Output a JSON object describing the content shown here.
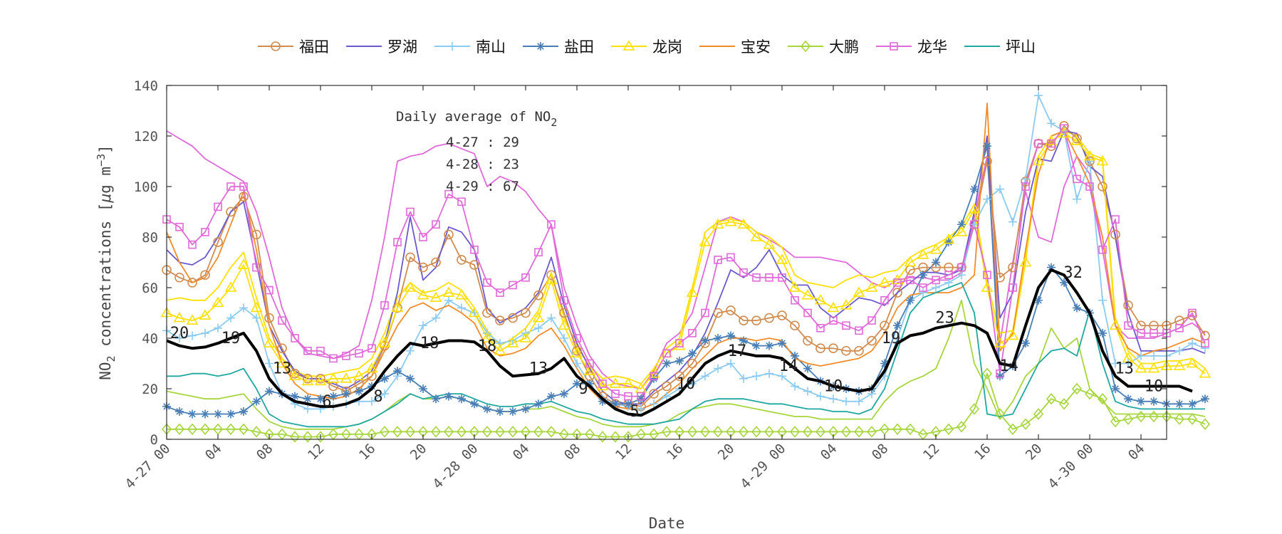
{
  "chart_data": {
    "type": "line",
    "title": "",
    "xlabel": "Date",
    "ylabel_main": "NO",
    "ylabel_sub": "2",
    "ylabel_rest": " concentrations [",
    "ylabel_mu": "μ",
    "ylabel_units": "g m",
    "ylabel_exp": "−3",
    "ylabel_close": "]",
    "ylim": [
      0,
      140
    ],
    "yticks": [
      0,
      20,
      40,
      60,
      80,
      100,
      120,
      140
    ],
    "xlim": [
      0,
      78
    ],
    "xticks": [
      {
        "pos": 0,
        "label": "4-27 00"
      },
      {
        "pos": 4,
        "label": "04"
      },
      {
        "pos": 8,
        "label": "08"
      },
      {
        "pos": 12,
        "label": "12"
      },
      {
        "pos": 16,
        "label": "16"
      },
      {
        "pos": 20,
        "label": "20"
      },
      {
        "pos": 24,
        "label": "4-28 00"
      },
      {
        "pos": 28,
        "label": "04"
      },
      {
        "pos": 32,
        "label": "08"
      },
      {
        "pos": 36,
        "label": "12"
      },
      {
        "pos": 40,
        "label": "16"
      },
      {
        "pos": 44,
        "label": "20"
      },
      {
        "pos": 48,
        "label": "4-29 00"
      },
      {
        "pos": 52,
        "label": "04"
      },
      {
        "pos": 56,
        "label": "08"
      },
      {
        "pos": 60,
        "label": "12"
      },
      {
        "pos": 64,
        "label": "16"
      },
      {
        "pos": 68,
        "label": "20"
      },
      {
        "pos": 72,
        "label": "4-30 00"
      },
      {
        "pos": 76,
        "label": "04"
      }
    ],
    "legend_position": "top",
    "annotation": {
      "title_main": "Daily average of NO",
      "title_sub": "2",
      "lines": [
        "4-27 : 29",
        "4-28 : 23",
        "4-29 : 67"
      ]
    },
    "avg_labels": [
      {
        "x": 1,
        "y": 40,
        "text": "20"
      },
      {
        "x": 5,
        "y": 38,
        "text": "19"
      },
      {
        "x": 9,
        "y": 26,
        "text": "13"
      },
      {
        "x": 12.5,
        "y": 13,
        "text": "6"
      },
      {
        "x": 16.5,
        "y": 15,
        "text": "8"
      },
      {
        "x": 20.5,
        "y": 36,
        "text": "18"
      },
      {
        "x": 25,
        "y": 35,
        "text": "18"
      },
      {
        "x": 29,
        "y": 26,
        "text": "13"
      },
      {
        "x": 32.5,
        "y": 18,
        "text": "9"
      },
      {
        "x": 36.5,
        "y": 9,
        "text": "5"
      },
      {
        "x": 40.5,
        "y": 20,
        "text": "10"
      },
      {
        "x": 44.5,
        "y": 33,
        "text": "17"
      },
      {
        "x": 48.5,
        "y": 27,
        "text": "14"
      },
      {
        "x": 52,
        "y": 19,
        "text": "10"
      },
      {
        "x": 56.5,
        "y": 38,
        "text": "19"
      },
      {
        "x": 60.7,
        "y": 46,
        "text": "23"
      },
      {
        "x": 65.7,
        "y": 27,
        "text": "14"
      },
      {
        "x": 70.7,
        "y": 64,
        "text": "32"
      },
      {
        "x": 74.7,
        "y": 26,
        "text": "13"
      },
      {
        "x": 77,
        "y": 19,
        "text": "10"
      }
    ],
    "average_series": {
      "name": "",
      "color": "#000000",
      "values": [
        39,
        37,
        36,
        36.5,
        38,
        40,
        42,
        35,
        24,
        18,
        15,
        14,
        13,
        13,
        14,
        16,
        20,
        27,
        33,
        38,
        37,
        38,
        39,
        39,
        38.5,
        35,
        29,
        25,
        25.5,
        26,
        28,
        32,
        25,
        21,
        16,
        12,
        10,
        9.5,
        12,
        15,
        18,
        24,
        30,
        33,
        35,
        34,
        33,
        33,
        32,
        28,
        24,
        23,
        21,
        20,
        19,
        20,
        27,
        38,
        41,
        42,
        44,
        45,
        46,
        45,
        42,
        30,
        29,
        45,
        60,
        67,
        65,
        58,
        50,
        35,
        25,
        21,
        21,
        21,
        21,
        21,
        19
      ]
    },
    "series": [
      {
        "name": "福田",
        "color": "#d08c50",
        "marker": "circle",
        "values": [
          67,
          64,
          62,
          65,
          78,
          90,
          96,
          81,
          48,
          36,
          26,
          24,
          24,
          21,
          19,
          22,
          25,
          37,
          52,
          72,
          68,
          70,
          81,
          71,
          69,
          50,
          47,
          48,
          50,
          57,
          65,
          50,
          35,
          25,
          17,
          14,
          14,
          13,
          18,
          21,
          25,
          30,
          38,
          50,
          51,
          47,
          47,
          48,
          49,
          45,
          39,
          36,
          36,
          35,
          35,
          39,
          45,
          58,
          67,
          68,
          68,
          68,
          68,
          85,
          110,
          64,
          68,
          102,
          117,
          116,
          124,
          119,
          110,
          100,
          81,
          53,
          45,
          45,
          45,
          47,
          49,
          41
        ]
      },
      {
        "name": "罗湖",
        "color": "#6a5acd",
        "marker": "none",
        "values": [
          75,
          70,
          69,
          72,
          80,
          90,
          94,
          70,
          45,
          35,
          27,
          24,
          24,
          22,
          20,
          23,
          27,
          38,
          58,
          88,
          63,
          68,
          84,
          82,
          75,
          52,
          46,
          49,
          52,
          58,
          72,
          53,
          38,
          28,
          19,
          15,
          14,
          14,
          19,
          23,
          27,
          33,
          42,
          54,
          67,
          64,
          68,
          75,
          65,
          61,
          61,
          52,
          48,
          52,
          56,
          55,
          53,
          58,
          62,
          66,
          66,
          65,
          67,
          90,
          120,
          48,
          58,
          90,
          111,
          110,
          122,
          121,
          108,
          104,
          80,
          50,
          35,
          35,
          35,
          35,
          36,
          34
        ]
      },
      {
        "name": "南山",
        "color": "#8ccbf0",
        "marker": "plus",
        "values": [
          43,
          40,
          41,
          42,
          44,
          48,
          52,
          48,
          30,
          18,
          14,
          12,
          12,
          13,
          14,
          15,
          15,
          18,
          25,
          35,
          45,
          48,
          55,
          52,
          50,
          42,
          38,
          39,
          42,
          44,
          48,
          40,
          30,
          22,
          16,
          14,
          13,
          12,
          14,
          17,
          20,
          22,
          25,
          28,
          30,
          24,
          25,
          26,
          25,
          21,
          19,
          17,
          16,
          15,
          15,
          18,
          25,
          40,
          55,
          58,
          60,
          62,
          65,
          85,
          95,
          99,
          86,
          103,
          136,
          125,
          122,
          95,
          110,
          55,
          30,
          30,
          33,
          33,
          33,
          35,
          38,
          36
        ]
      },
      {
        "name": "盐田",
        "color": "#4a7fb5",
        "marker": "asterisk",
        "values": [
          13,
          11,
          10,
          10,
          10,
          10,
          11,
          15,
          19,
          18,
          17,
          16,
          16,
          17,
          18,
          19,
          21,
          24,
          27,
          24,
          20,
          16,
          17,
          16,
          14,
          12,
          11,
          11,
          12,
          14,
          17,
          18,
          22,
          22,
          15,
          14,
          14,
          16,
          24,
          30,
          31,
          34,
          39,
          40,
          41,
          39,
          37,
          37,
          38,
          33,
          28,
          23,
          21,
          20,
          19,
          20,
          30,
          45,
          55,
          65,
          70,
          78,
          85,
          99,
          116,
          25,
          29,
          38,
          55,
          68,
          62,
          52,
          50,
          42,
          20,
          16,
          15,
          15,
          14,
          14,
          14,
          16
        ]
      },
      {
        "name": "龙岗",
        "color": "#ffe000",
        "marker": "triangle",
        "values": [
          50,
          48,
          47,
          49,
          54,
          60,
          69,
          52,
          38,
          30,
          25,
          23,
          23,
          24,
          24,
          25,
          28,
          38,
          52,
          60,
          57,
          56,
          58,
          57,
          50,
          40,
          35,
          38,
          40,
          48,
          63,
          45,
          34,
          27,
          21,
          22,
          22,
          20,
          26,
          34,
          37,
          58,
          78,
          85,
          86,
          85,
          80,
          77,
          71,
          60,
          57,
          55,
          52,
          53,
          58,
          60,
          62,
          63,
          70,
          73,
          75,
          79,
          82,
          91,
          60,
          38,
          41,
          70,
          110,
          118,
          121,
          118,
          112,
          110,
          45,
          32,
          28,
          28,
          29,
          29,
          30,
          26
        ]
      },
      {
        "name": "宝安",
        "color": "#f28c28",
        "marker": "none",
        "values": [
          82,
          70,
          62,
          64,
          72,
          85,
          98,
          75,
          45,
          30,
          22,
          18,
          17,
          16,
          17,
          20,
          25,
          35,
          45,
          52,
          54,
          51,
          53,
          50,
          46,
          36,
          33,
          34,
          36,
          41,
          44,
          37,
          28,
          20,
          15,
          13,
          12,
          12,
          14,
          18,
          22,
          28,
          33,
          38,
          40,
          40,
          39,
          40,
          39,
          32,
          30,
          29,
          30,
          31,
          32,
          35,
          42,
          52,
          57,
          58,
          58,
          58,
          60,
          65,
          133,
          35,
          42,
          75,
          105,
          120,
          122,
          112,
          101,
          80,
          45,
          36,
          33,
          35,
          36,
          38,
          40,
          38
        ]
      },
      {
        "name": "大鹏",
        "color": "#a6d63c",
        "marker": "diamond",
        "values": [
          4,
          4,
          4,
          4,
          4,
          4,
          4,
          3,
          2,
          2,
          1,
          1,
          1,
          2,
          2,
          2,
          2,
          3,
          3,
          3,
          3,
          3,
          3,
          3,
          3,
          3,
          3,
          3,
          3,
          3,
          3,
          2,
          2,
          2,
          1,
          1,
          1,
          2,
          2,
          3,
          3,
          3,
          3,
          3,
          3,
          3,
          3,
          3,
          3,
          3,
          3,
          3,
          3,
          3,
          3,
          3,
          4,
          4,
          4,
          2,
          3,
          4,
          5,
          12,
          26,
          10,
          4,
          6,
          10,
          16,
          14,
          20,
          18,
          16,
          7,
          8,
          9,
          9,
          9,
          8,
          8,
          6
        ]
      },
      {
        "name": "龙华",
        "color": "#e06ad8",
        "marker": "square",
        "values": [
          87,
          84,
          77,
          82,
          92,
          100,
          100,
          68,
          59,
          47,
          40,
          35,
          35,
          32,
          33,
          34,
          36,
          53,
          78,
          90,
          80,
          85,
          97,
          94,
          75,
          62,
          58,
          61,
          64,
          74,
          85,
          55,
          40,
          30,
          22,
          18,
          17,
          17,
          25,
          34,
          38,
          42,
          50,
          71,
          72,
          66,
          64,
          64,
          64,
          55,
          50,
          44,
          47,
          45,
          43,
          47,
          55,
          62,
          63,
          60,
          63,
          65,
          68,
          85,
          65,
          26,
          60,
          100,
          117,
          117,
          123,
          103,
          100,
          75,
          87,
          45,
          42,
          42,
          42,
          44,
          50,
          38
        ]
      },
      {
        "name": "坪山",
        "color": "#1fa8a0",
        "marker": "none",
        "values": [
          25,
          25,
          26,
          26,
          25,
          26,
          28,
          20,
          10,
          7,
          6,
          5,
          5,
          5,
          5,
          6,
          8,
          11,
          14,
          18,
          16,
          17,
          18,
          18,
          16,
          14,
          13,
          13,
          14,
          14,
          15,
          13,
          11,
          10,
          8,
          7,
          6,
          6,
          6,
          7,
          8,
          12,
          15,
          16,
          16,
          16,
          15,
          14,
          14,
          13,
          12,
          12,
          11,
          11,
          10,
          12,
          20,
          35,
          50,
          56,
          58,
          60,
          62,
          50,
          10,
          9,
          10,
          20,
          30,
          35,
          36,
          33,
          51,
          30,
          15,
          13,
          12,
          12,
          12,
          12,
          12,
          12
        ]
      }
    ],
    "extra_lines": [
      {
        "color": "#e06ad8",
        "values": [
          122,
          119,
          116,
          111,
          108,
          105,
          102,
          90,
          72,
          52,
          40,
          34,
          33,
          32,
          34,
          37,
          55,
          80,
          110,
          112,
          113,
          116,
          117,
          115,
          113,
          100,
          104,
          102,
          98,
          91,
          85,
          60,
          45,
          33,
          26,
          22,
          21,
          20,
          27,
          38,
          42,
          50,
          68,
          86,
          88,
          86,
          82,
          79,
          76,
          72,
          72,
          72,
          71,
          70,
          66,
          62,
          60,
          63,
          64,
          64,
          63,
          63,
          66,
          88,
          112,
          38,
          70,
          98,
          80,
          78,
          100,
          112,
          105,
          75,
          45,
          40,
          40,
          40,
          42,
          44,
          46,
          42
        ]
      },
      {
        "color": "#ffe000",
        "values": [
          55,
          56,
          55,
          55,
          60,
          68,
          74,
          56,
          40,
          32,
          27,
          25,
          25,
          26,
          27,
          28,
          32,
          42,
          56,
          62,
          58,
          59,
          62,
          59,
          52,
          43,
          37,
          40,
          44,
          51,
          66,
          48,
          37,
          29,
          24,
          25,
          24,
          22,
          28,
          36,
          40,
          60,
          82,
          86,
          87,
          86,
          82,
          80,
          76,
          65,
          62,
          61,
          60,
          63,
          65,
          64,
          66,
          67,
          72,
          75,
          77,
          80,
          84,
          93,
          62,
          42,
          43,
          72,
          112,
          120,
          122,
          120,
          113,
          111,
          48,
          35,
          30,
          30,
          31,
          31,
          32,
          28
        ]
      },
      {
        "color": "#a6d63c",
        "values": [
          19,
          18,
          17,
          16,
          16,
          17,
          18,
          12,
          7,
          5,
          4,
          4,
          4,
          4,
          5,
          6,
          8,
          11,
          15,
          18,
          16,
          16,
          17,
          16,
          14,
          12,
          11,
          11,
          12,
          12,
          13,
          11,
          9,
          8,
          6,
          5,
          5,
          5,
          6,
          7,
          10,
          12,
          13,
          14,
          14,
          13,
          12,
          11,
          10,
          9,
          9,
          8,
          8,
          8,
          8,
          8,
          15,
          20,
          23,
          25,
          28,
          40,
          55,
          30,
          20,
          8,
          15,
          25,
          30,
          44,
          36,
          40,
          20,
          15,
          10,
          10,
          10,
          10,
          10,
          10,
          10,
          9
        ]
      }
    ]
  }
}
